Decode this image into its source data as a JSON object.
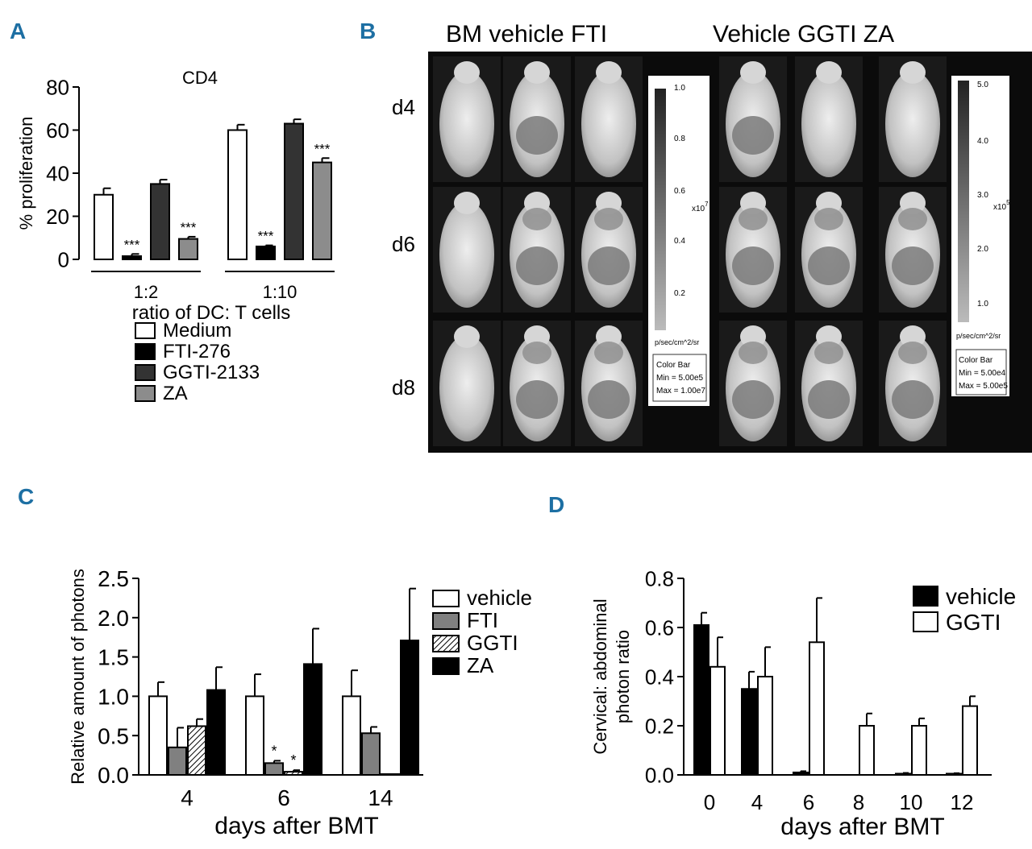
{
  "panel_letters": [
    "A",
    "B",
    "C",
    "D"
  ],
  "panel_b": {
    "left_title": "BM vehicle FTI",
    "right_title": "Vehicle GGTI ZA",
    "row_labels": [
      "d4",
      "d6",
      "d8"
    ],
    "scale_left": {
      "ticks": [
        "1.0",
        "0.8",
        "0.6",
        "0.4",
        "0.2"
      ],
      "multiplier": "x10",
      "exponent": "7",
      "unit": "p/sec/cm^2/sr",
      "color_bar_title": "Color Bar",
      "min": "Min = 5.00e5",
      "max": "Max = 1.00e7"
    },
    "scale_right": {
      "ticks": [
        "5.0",
        "4.0",
        "3.0",
        "2.0",
        "1.0"
      ],
      "multiplier": "x10",
      "exponent": "5",
      "unit": "p/sec/cm^2/sr",
      "color_bar_title": "Color Bar",
      "min": "Min = 5.00e4",
      "max": "Max = 5.00e5"
    }
  },
  "chart_data": [
    {
      "id": "A",
      "type": "bar",
      "title": "CD4",
      "ylabel": "% proliferation",
      "xlabel": "ratio of DC: T cells",
      "categories": [
        "1:2",
        "1:10"
      ],
      "ylim": [
        0,
        80
      ],
      "yticks": [
        "0",
        "20",
        "40",
        "60",
        "80"
      ],
      "series": [
        {
          "name": "Medium",
          "color": "#ffffff",
          "values": [
            30,
            60
          ],
          "errors": [
            3,
            2.5
          ],
          "sig": [
            "",
            ""
          ]
        },
        {
          "name": "FTI-276",
          "color": "#000000",
          "values": [
            1.5,
            6
          ],
          "errors": [
            1,
            0.5
          ],
          "sig": [
            "***",
            "***"
          ]
        },
        {
          "name": "GGTI-2133",
          "color": "#333333",
          "values": [
            35,
            63
          ],
          "errors": [
            2,
            2
          ],
          "sig": [
            "",
            ""
          ]
        },
        {
          "name": "ZA",
          "color": "#8c8c8c",
          "values": [
            9.5,
            45
          ],
          "errors": [
            1,
            2
          ],
          "sig": [
            "***",
            "***"
          ]
        }
      ]
    },
    {
      "id": "C",
      "type": "bar",
      "ylabel": "Relative amount of photons",
      "xlabel": "days after BMT",
      "categories": [
        "4",
        "6",
        "14"
      ],
      "ylim": [
        0,
        2.5
      ],
      "yticks": [
        "0.0",
        "0.5",
        "1.0",
        "1.5",
        "2.0",
        "2.5"
      ],
      "series": [
        {
          "name": "vehicle",
          "color": "#ffffff",
          "values": [
            1.0,
            1.0,
            1.0
          ],
          "errors": [
            0.18,
            0.28,
            0.33
          ],
          "sig": [
            "",
            "",
            ""
          ]
        },
        {
          "name": "FTI",
          "color": "#808080",
          "values": [
            0.35,
            0.15,
            0.53
          ],
          "errors": [
            0.25,
            0.03,
            0.08
          ],
          "sig": [
            "",
            "*",
            ""
          ]
        },
        {
          "name": "GGTI",
          "color": "hatch",
          "values": [
            0.62,
            0.04,
            0.01
          ],
          "errors": [
            0.09,
            0.02,
            0.0
          ],
          "sig": [
            "",
            "*",
            ""
          ]
        },
        {
          "name": "ZA",
          "color": "#000000",
          "values": [
            1.08,
            1.41,
            1.71
          ],
          "errors": [
            0.29,
            0.45,
            0.66
          ],
          "sig": [
            "",
            "",
            ""
          ]
        }
      ]
    },
    {
      "id": "D",
      "type": "bar",
      "ylabel": [
        "Cervical: abdominal",
        "photon ratio"
      ],
      "xlabel": "days after BMT",
      "categories": [
        "0",
        "4",
        "6",
        "8",
        "10",
        "12"
      ],
      "ylim": [
        0,
        0.8
      ],
      "yticks": [
        "0.0",
        "0.2",
        "0.4",
        "0.6",
        "0.8"
      ],
      "series": [
        {
          "name": "vehicle",
          "color": "#000000",
          "values": [
            0.61,
            0.35,
            0.01,
            0.0,
            0.005,
            0.005
          ],
          "errors": [
            0.05,
            0.07,
            0.005,
            0.0,
            0.003,
            0.002
          ]
        },
        {
          "name": "GGTI",
          "color": "#ffffff",
          "values": [
            0.44,
            0.4,
            0.54,
            0.2,
            0.2,
            0.28
          ],
          "errors": [
            0.12,
            0.12,
            0.18,
            0.05,
            0.03,
            0.04
          ]
        }
      ]
    }
  ]
}
